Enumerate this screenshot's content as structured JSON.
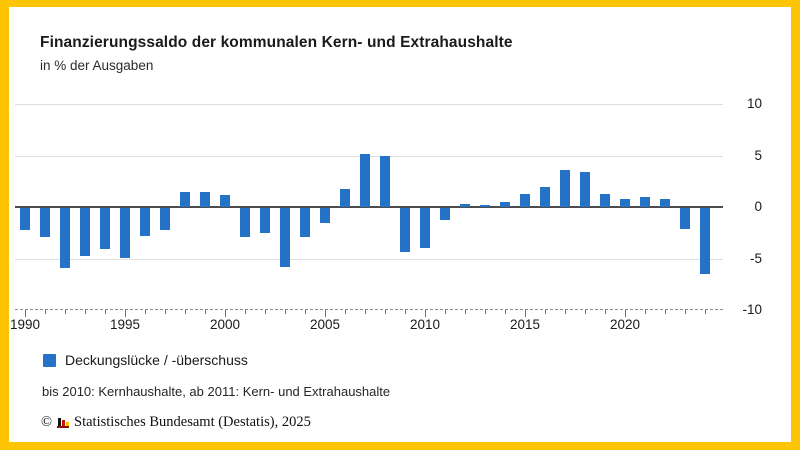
{
  "frame": {
    "border_color": "#FDC504",
    "background": "#ffffff"
  },
  "header": {
    "title": "Finanzierungssaldo der kommunalen Kern- und Extrahaushalte",
    "subtitle": "in % der Ausgaben"
  },
  "chart_data": {
    "type": "bar",
    "title": "Finanzierungssaldo der kommunalen Kern- und Extrahaushalte",
    "ylabel": "in % der Ausgaben",
    "categories": [
      1990,
      1991,
      1992,
      1993,
      1994,
      1995,
      1996,
      1997,
      1998,
      1999,
      2000,
      2001,
      2002,
      2003,
      2004,
      2005,
      2006,
      2007,
      2008,
      2009,
      2010,
      2011,
      2012,
      2013,
      2014,
      2015,
      2016,
      2017,
      2018,
      2019,
      2020,
      2021,
      2022,
      2023,
      2024
    ],
    "values": [
      -2.1,
      -2.8,
      -5.8,
      -4.7,
      -4.0,
      -4.9,
      -2.7,
      -2.1,
      1.5,
      1.5,
      1.2,
      -2.8,
      -2.4,
      -5.7,
      -2.8,
      -1.5,
      1.7,
      5.1,
      5.0,
      -4.3,
      -3.9,
      -1.2,
      0.3,
      0.2,
      0.5,
      1.3,
      1.9,
      3.6,
      3.4,
      1.3,
      0.8,
      1.0,
      0.8,
      -2.0,
      -6.4
    ],
    "ylim": [
      -10,
      10
    ],
    "yticks": [
      10,
      5,
      0,
      -5,
      -10
    ],
    "xticks_labeled": [
      1990,
      1995,
      2000,
      2005,
      2010,
      2015,
      2020
    ],
    "bar_color": "#2573C7",
    "grid": "horizontal",
    "legend_position": "bottom-left"
  },
  "legend": {
    "label": "Deckungslücke / -überschuss"
  },
  "footnote": "bis 2010: Kernhaushalte, ab 2011: Kern- und Extrahaushalte",
  "footer": {
    "copyright": "©",
    "source": "Statistisches Bundesamt (Destatis), 2025"
  }
}
